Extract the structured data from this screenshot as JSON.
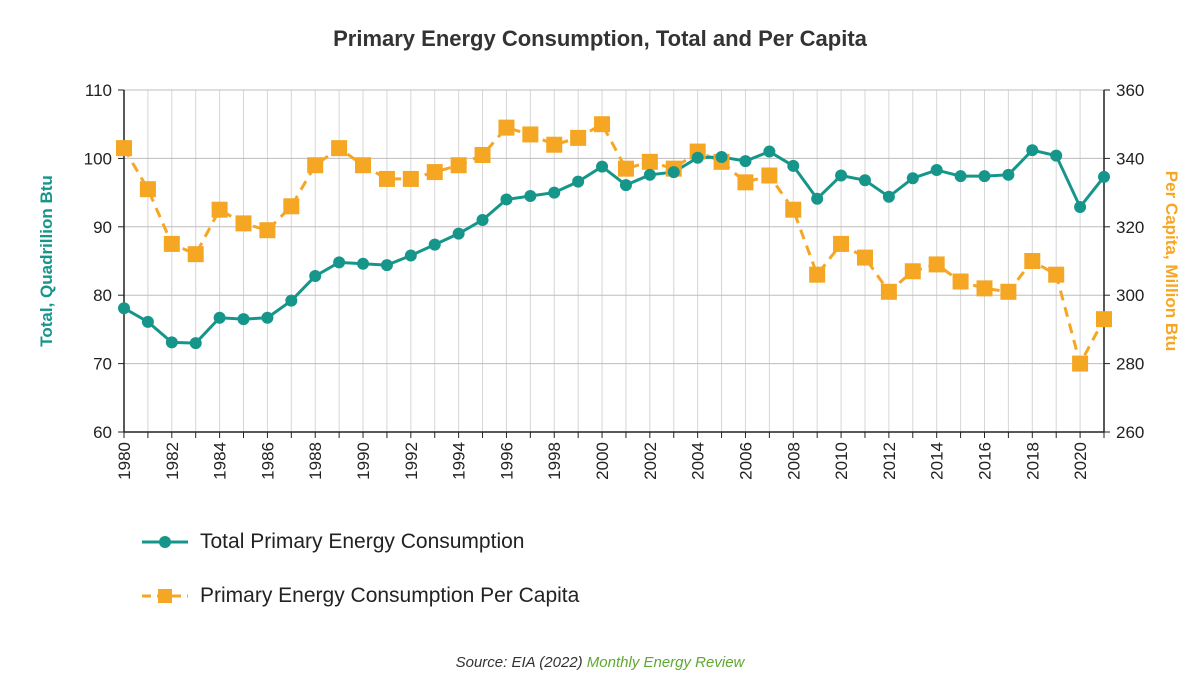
{
  "chart_data": {
    "type": "line",
    "title": "Primary Energy Consumption, Total and Per Capita",
    "x": [
      1980,
      1981,
      1982,
      1983,
      1984,
      1985,
      1986,
      1987,
      1988,
      1989,
      1990,
      1991,
      1992,
      1993,
      1994,
      1995,
      1996,
      1997,
      1998,
      1999,
      2000,
      2001,
      2002,
      2003,
      2004,
      2005,
      2006,
      2007,
      2008,
      2009,
      2010,
      2011,
      2012,
      2013,
      2014,
      2015,
      2016,
      2017,
      2018,
      2019,
      2020,
      2021
    ],
    "x_tick_labels": [
      "1980",
      "1982",
      "1984",
      "1986",
      "1988",
      "1990",
      "1992",
      "1994",
      "1996",
      "1998",
      "2000",
      "2002",
      "2004",
      "2006",
      "2008",
      "2010",
      "2012",
      "2014",
      "2016",
      "2018",
      "2020"
    ],
    "ylabel_left": "Total, Quadrillion Btu",
    "ylabel_right": "Per Capita, Million Btu",
    "ylim_left": [
      60,
      110
    ],
    "ylim_right": [
      260,
      360
    ],
    "y_ticks_left": [
      "60",
      "70",
      "80",
      "90",
      "100",
      "110"
    ],
    "y_ticks_right": [
      "260",
      "280",
      "300",
      "320",
      "340",
      "360"
    ],
    "grid": true,
    "legend_position": "bottom-left",
    "series": [
      {
        "name": "Total Primary Energy Consumption",
        "axis": "left",
        "color": "#16968a",
        "marker": "circle",
        "line": "solid",
        "values": [
          78.1,
          76.1,
          73.1,
          73.0,
          76.7,
          76.5,
          76.7,
          79.2,
          82.8,
          84.8,
          84.6,
          84.4,
          85.8,
          87.4,
          89.0,
          91.0,
          94.0,
          94.5,
          95.0,
          96.6,
          98.8,
          96.1,
          97.6,
          98.0,
          100.1,
          100.2,
          99.6,
          101.0,
          98.9,
          94.1,
          97.5,
          96.8,
          94.4,
          97.1,
          98.3,
          97.4,
          97.4,
          97.6,
          101.2,
          100.4,
          92.9,
          97.3
        ]
      },
      {
        "name": "Primary Energy Consumption Per Capita",
        "axis": "right",
        "color": "#f5a623",
        "marker": "square",
        "line": "dashed",
        "values": [
          343,
          331,
          315,
          312,
          325,
          321,
          319,
          326,
          338,
          343,
          338,
          334,
          334,
          336,
          338,
          341,
          349,
          347,
          344,
          346,
          350,
          337,
          339,
          337,
          342,
          339,
          333,
          335,
          325,
          306,
          315,
          311,
          301,
          307,
          309,
          304,
          302,
          301,
          310,
          306,
          280,
          293
        ]
      }
    ]
  },
  "source": {
    "prefix": "Source: EIA (2022) ",
    "publication": "Monthly Energy Review"
  }
}
